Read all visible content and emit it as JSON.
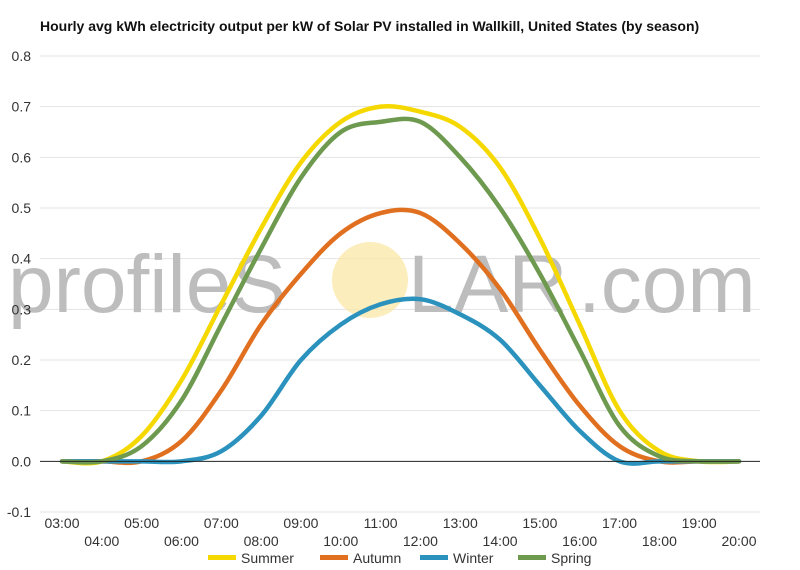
{
  "watermark": {
    "text_left": "profileS",
    "text_mid": "LAR",
    "text_right": ".com"
  },
  "chart_data": {
    "type": "line",
    "title": "Hourly avg kWh electricity output per kW of Solar PV installed in Wallkill, United States (by season)",
    "x": [
      "03:00",
      "04:00",
      "05:00",
      "06:00",
      "07:00",
      "08:00",
      "09:00",
      "10:00",
      "11:00",
      "12:00",
      "13:00",
      "14:00",
      "15:00",
      "16:00",
      "17:00",
      "18:00",
      "19:00",
      "20:00"
    ],
    "ylim": [
      -0.1,
      0.8
    ],
    "yticks": [
      "-0.1",
      "0.0",
      "0.1",
      "0.2",
      "0.3",
      "0.4",
      "0.5",
      "0.6",
      "0.7",
      "0.8"
    ],
    "grid": true,
    "legend_position": "bottom",
    "series": [
      {
        "name": "Summer",
        "color": "#f5d800",
        "values": [
          0.0,
          0.0,
          0.05,
          0.16,
          0.31,
          0.46,
          0.59,
          0.67,
          0.7,
          0.69,
          0.66,
          0.58,
          0.44,
          0.27,
          0.1,
          0.02,
          0.0,
          0.0
        ]
      },
      {
        "name": "Autumn",
        "color": "#e07020",
        "values": [
          0.0,
          0.0,
          0.0,
          0.04,
          0.14,
          0.27,
          0.37,
          0.45,
          0.49,
          0.49,
          0.43,
          0.34,
          0.22,
          0.11,
          0.03,
          0.0,
          0.0,
          0.0
        ]
      },
      {
        "name": "Winter",
        "color": "#2a92bd",
        "values": [
          0.0,
          0.0,
          0.0,
          0.0,
          0.02,
          0.09,
          0.2,
          0.27,
          0.31,
          0.32,
          0.29,
          0.24,
          0.15,
          0.06,
          0.0,
          0.0,
          0.0,
          0.0
        ]
      },
      {
        "name": "Spring",
        "color": "#6e9a50",
        "values": [
          0.0,
          0.0,
          0.03,
          0.12,
          0.27,
          0.42,
          0.56,
          0.65,
          0.67,
          0.67,
          0.6,
          0.5,
          0.37,
          0.22,
          0.07,
          0.01,
          0.0,
          0.0
        ]
      }
    ]
  }
}
